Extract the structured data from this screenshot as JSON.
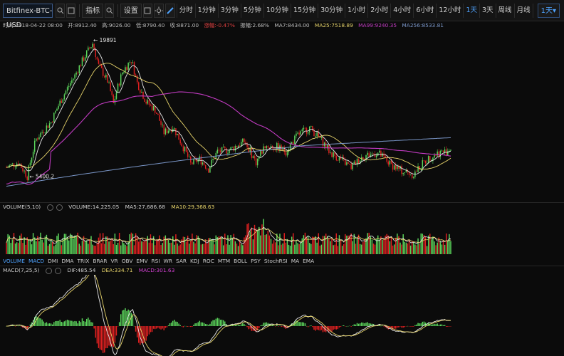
{
  "toolbar": {
    "symbol": "Bitfinex-BTC-USD",
    "indicators_label": "指标",
    "settings_label": "设置",
    "periods": [
      "分时",
      "1分钟",
      "3分钟",
      "5分钟",
      "10分钟",
      "15分钟",
      "30分钟",
      "1小时",
      "2小时",
      "4小时",
      "6小时",
      "12小时",
      "1天",
      "3天",
      "周线",
      "月线"
    ],
    "active_period": "1天",
    "current_period": "1天▾"
  },
  "info": {
    "time": "时间:2018-04-22 08:00",
    "open": "开:8912.40",
    "high": "高:9026.00",
    "low": "低:8790.40",
    "close": "收:8871.00",
    "change": "涨幅:-0.47%",
    "amplitude": "振幅:2.68%",
    "ma7": "MA7:8434.00",
    "ma25": "MA25:7518.89",
    "ma99": "MA99:9240.35",
    "ma256": "MA256:8533.81"
  },
  "annotations": {
    "high_mark": "19891",
    "low_mark": "5400.2"
  },
  "volume": {
    "label": "VOLUME(5,10)",
    "value": "VOLUME:14,225.05",
    "ma5": "MA5:27,686.68",
    "ma10": "MA10:29,368.63"
  },
  "indicator_tabs": [
    "VOLUME",
    "MACD",
    "DMI",
    "DMA",
    "TRIX",
    "BRAR",
    "VR",
    "OBV",
    "EMV",
    "RSI",
    "WR",
    "SAR",
    "KDJ",
    "ROC",
    "MTM",
    "BOLL",
    "PSY",
    "StochRSI",
    "MA",
    "EMA"
  ],
  "indicator_active": [
    "VOLUME",
    "MACD"
  ],
  "macd": {
    "label": "MACD(7,25,5)",
    "dif": "DIF:485.54",
    "dea": "DEA:334.71",
    "macd": "MACD:301.63"
  },
  "colors": {
    "up": "#5cd65c",
    "down": "#e02020",
    "ma7": "#e8e8e8",
    "ma25": "#e6d36a",
    "ma99": "#c23bc2",
    "ma256": "#7a96c8",
    "dif": "#e8e8e8",
    "dea": "#e6d36a",
    "macd": "#d040d0",
    "change": "#e04040"
  },
  "icons": {
    "search": "search-icon",
    "fullscreen": "fullscreen-icon",
    "theme": "sun-icon",
    "draw": "pencil-icon",
    "settings": "gear-icon",
    "close": "close-icon"
  }
}
